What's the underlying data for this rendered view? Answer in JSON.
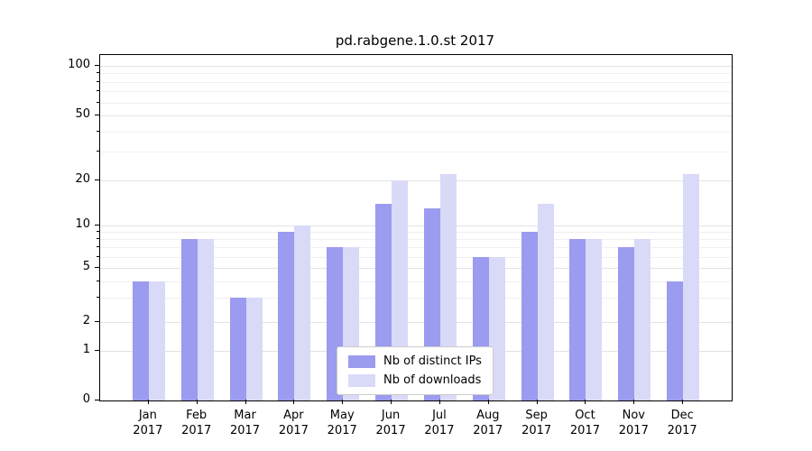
{
  "chart_data": {
    "type": "bar",
    "title": "pd.rabgene.1.0.st 2017",
    "categories": [
      "Jan 2017",
      "Feb 2017",
      "Mar 2017",
      "Apr 2017",
      "May 2017",
      "Jun 2017",
      "Jul 2017",
      "Aug 2017",
      "Sep 2017",
      "Oct 2017",
      "Nov 2017",
      "Dec 2017"
    ],
    "series": [
      {
        "name": "Nb of distinct IPs",
        "color": "#9b9bef",
        "values": [
          4,
          8,
          3,
          9,
          7,
          14,
          13,
          6,
          9,
          8,
          7,
          4
        ]
      },
      {
        "name": "Nb of downloads",
        "color": "#d9d9f8",
        "values": [
          4,
          8,
          3,
          10,
          7,
          20,
          22,
          6,
          14,
          8,
          8,
          22
        ]
      }
    ],
    "yscale": "symlog",
    "yticks": [
      0,
      1,
      2,
      5,
      10,
      20,
      50,
      100
    ],
    "yticks_minor": [
      3,
      4,
      6,
      7,
      8,
      9,
      30,
      40,
      60,
      70,
      80,
      90
    ],
    "ylim": [
      0,
      120
    ],
    "xlabel": "",
    "ylabel": "",
    "grid": true,
    "legend_position": "lower center"
  },
  "colors": {
    "grid_major": "#e3e3e3",
    "grid_minor": "#f0f0f0",
    "axis": "#000000",
    "background": "#ffffff"
  }
}
